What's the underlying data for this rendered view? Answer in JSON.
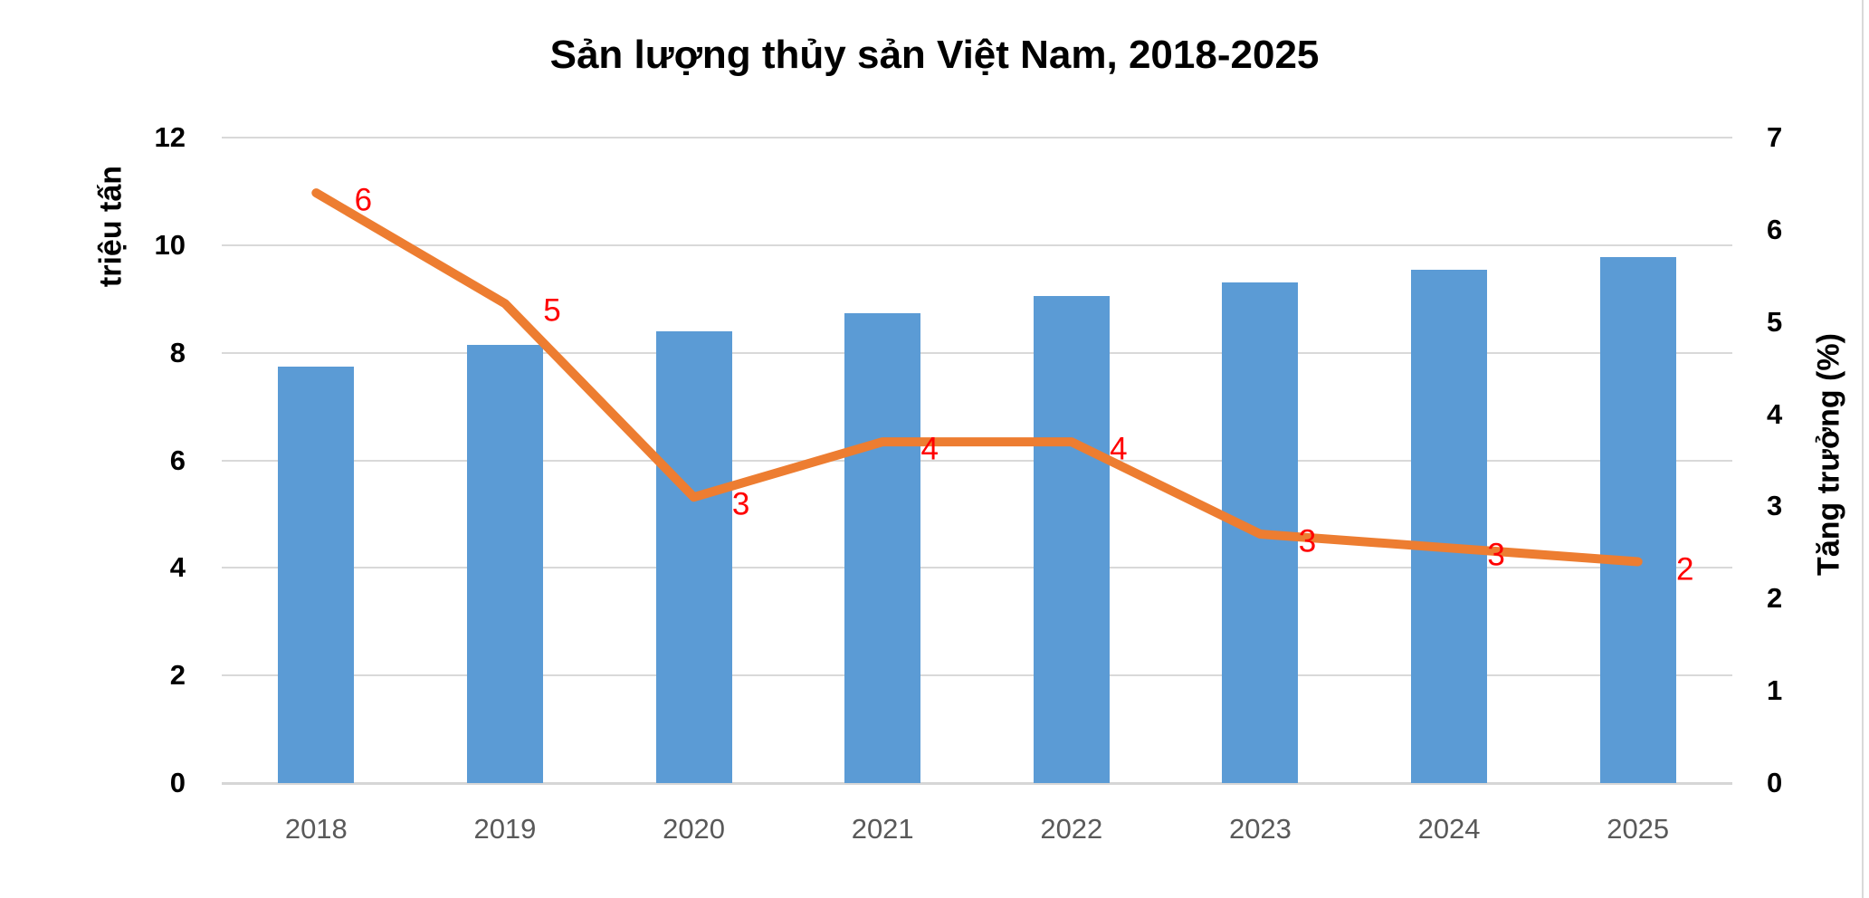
{
  "title": "Sản lượng thủy sản Việt Nam, 2018-2025",
  "colors": {
    "bar": "#5B9BD5",
    "line": "#ED7D31",
    "data_label": "#FF0000",
    "gridline": "#D9D9D9",
    "axis_line": "#D6D6D6",
    "tick_text": "#000000",
    "year_text": "#595959",
    "edge_border": "#D9D9D9"
  },
  "chart_data": {
    "type": "bar",
    "subtype": "combo-bar-line-dual-axis",
    "title": "Sản lượng thủy sản Việt Nam, 2018-2025",
    "categories": [
      "2018",
      "2019",
      "2020",
      "2021",
      "2022",
      "2023",
      "2024",
      "2025"
    ],
    "series": [
      {
        "name": "Sản lượng",
        "type": "bar",
        "axis": "left",
        "color": "#5B9BD5",
        "values": [
          7.74,
          8.15,
          8.4,
          8.73,
          9.05,
          9.3,
          9.55,
          9.78
        ]
      },
      {
        "name": "Tăng trưởng",
        "type": "line",
        "axis": "right",
        "color": "#ED7D31",
        "values": [
          6.4,
          5.2,
          3.1,
          3.7,
          3.7,
          2.7,
          2.55,
          2.4
        ],
        "data_labels": [
          "6",
          "5",
          "3",
          "4",
          "4",
          "3",
          "3",
          "2"
        ],
        "data_label_color": "#FF0000"
      }
    ],
    "left_axis": {
      "title": "triệu tấn",
      "min": 0,
      "max": 12,
      "step": 2,
      "ticks": [
        "0",
        "2",
        "4",
        "6",
        "8",
        "10",
        "12"
      ]
    },
    "right_axis": {
      "title": "Tăng trưởng (%)",
      "min": 0,
      "max": 7,
      "step": 1,
      "ticks": [
        "0",
        "1",
        "2",
        "3",
        "4",
        "5",
        "6",
        "7"
      ]
    },
    "grid": true,
    "legend": "none"
  }
}
